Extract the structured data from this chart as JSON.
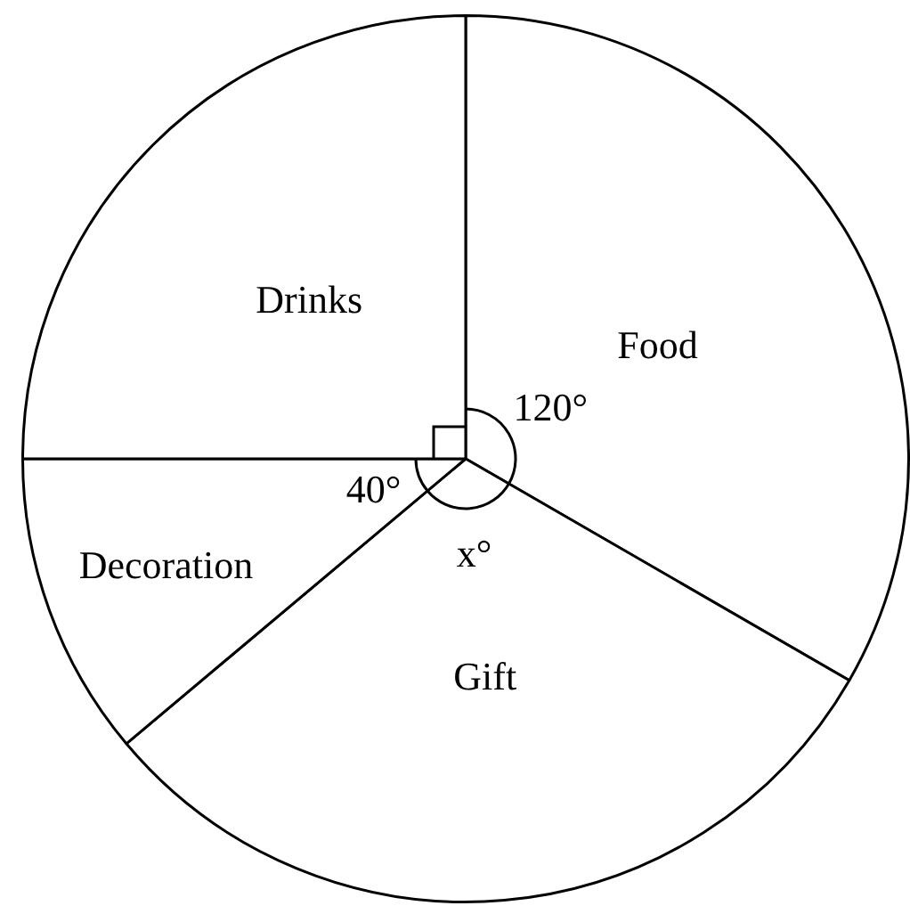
{
  "chart_data": {
    "type": "pie",
    "categories": [
      "Food",
      "Gift",
      "Decoration",
      "Drinks"
    ],
    "values": [
      120,
      110,
      40,
      90
    ],
    "colors": [
      "#ffffff",
      "#ffffff",
      "#ffffff",
      "#ffffff"
    ],
    "value_labels": [
      "120°",
      "x°",
      "40°",
      null
    ],
    "legend": false
  }
}
